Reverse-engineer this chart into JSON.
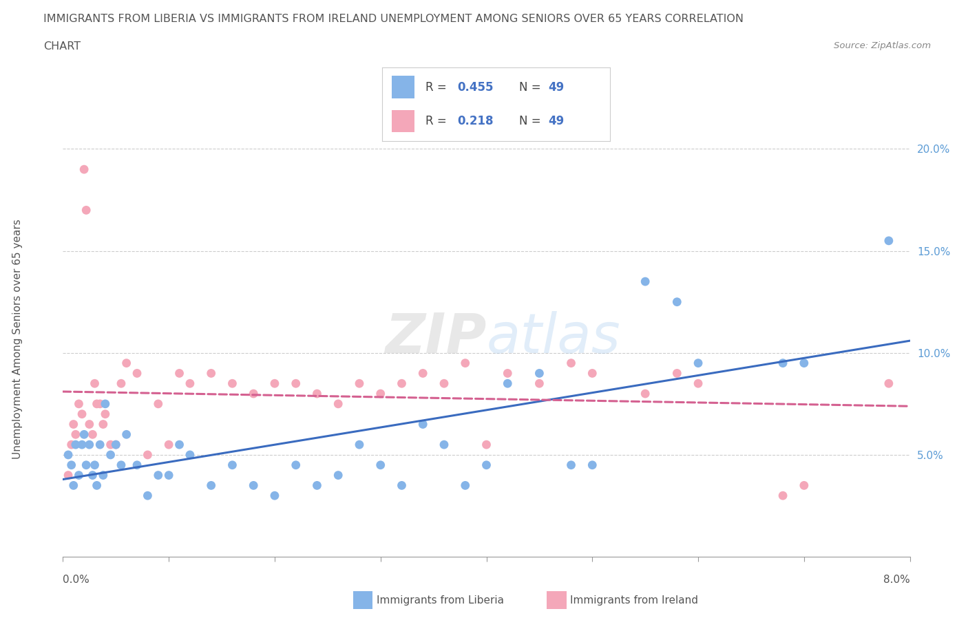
{
  "title_line1": "IMMIGRANTS FROM LIBERIA VS IMMIGRANTS FROM IRELAND UNEMPLOYMENT AMONG SENIORS OVER 65 YEARS CORRELATION",
  "title_line2": "CHART",
  "source": "Source: ZipAtlas.com",
  "ylabel": "Unemployment Among Seniors over 65 years",
  "x_min": 0.0,
  "x_max": 8.0,
  "y_min": 0.0,
  "y_max": 21.5,
  "y_ticks": [
    5.0,
    10.0,
    15.0,
    20.0
  ],
  "y_tick_labels": [
    "5.0%",
    "10.0%",
    "15.0%",
    "20.0%"
  ],
  "liberia_color": "#85b4e8",
  "ireland_color": "#f4a7b9",
  "liberia_line_color": "#3a6bbf",
  "ireland_line_color": "#d46090",
  "liberia_R": 0.455,
  "liberia_N": 49,
  "ireland_R": 0.218,
  "ireland_N": 49,
  "liberia_x": [
    0.05,
    0.08,
    0.1,
    0.12,
    0.15,
    0.18,
    0.2,
    0.22,
    0.25,
    0.28,
    0.3,
    0.32,
    0.35,
    0.38,
    0.4,
    0.45,
    0.5,
    0.55,
    0.6,
    0.7,
    0.8,
    0.9,
    1.0,
    1.1,
    1.2,
    1.4,
    1.6,
    1.8,
    2.0,
    2.2,
    2.4,
    2.6,
    2.8,
    3.0,
    3.2,
    3.4,
    3.6,
    3.8,
    4.0,
    4.2,
    4.5,
    4.8,
    5.0,
    5.5,
    5.8,
    6.0,
    6.8,
    7.0,
    7.8
  ],
  "liberia_y": [
    5.0,
    4.5,
    3.5,
    5.5,
    4.0,
    5.5,
    6.0,
    4.5,
    5.5,
    4.0,
    4.5,
    3.5,
    5.5,
    4.0,
    7.5,
    5.0,
    5.5,
    4.5,
    6.0,
    4.5,
    3.0,
    4.0,
    4.0,
    5.5,
    5.0,
    3.5,
    4.5,
    3.5,
    3.0,
    4.5,
    3.5,
    4.0,
    5.5,
    4.5,
    3.5,
    6.5,
    5.5,
    3.5,
    4.5,
    8.5,
    9.0,
    4.5,
    4.5,
    13.5,
    12.5,
    9.5,
    9.5,
    9.5,
    15.5
  ],
  "ireland_x": [
    0.05,
    0.08,
    0.1,
    0.12,
    0.15,
    0.18,
    0.2,
    0.22,
    0.25,
    0.28,
    0.3,
    0.32,
    0.35,
    0.38,
    0.4,
    0.45,
    0.5,
    0.55,
    0.6,
    0.7,
    0.8,
    0.9,
    1.0,
    1.1,
    1.2,
    1.4,
    1.6,
    1.8,
    2.0,
    2.2,
    2.4,
    2.6,
    2.8,
    3.0,
    3.2,
    3.4,
    3.6,
    3.8,
    4.0,
    4.2,
    4.5,
    4.8,
    5.0,
    5.5,
    5.8,
    6.0,
    6.8,
    7.0,
    7.8
  ],
  "ireland_y": [
    4.0,
    5.5,
    6.5,
    6.0,
    7.5,
    7.0,
    19.0,
    17.0,
    6.5,
    6.0,
    8.5,
    7.5,
    7.5,
    6.5,
    7.0,
    5.5,
    5.5,
    8.5,
    9.5,
    9.0,
    5.0,
    7.5,
    5.5,
    9.0,
    8.5,
    9.0,
    8.5,
    8.0,
    8.5,
    8.5,
    8.0,
    7.5,
    8.5,
    8.0,
    8.5,
    9.0,
    8.5,
    9.5,
    5.5,
    9.0,
    8.5,
    9.5,
    9.0,
    8.0,
    9.0,
    8.5,
    3.0,
    3.5,
    8.5
  ],
  "watermark": "ZIPatlas",
  "bg_color": "#ffffff"
}
